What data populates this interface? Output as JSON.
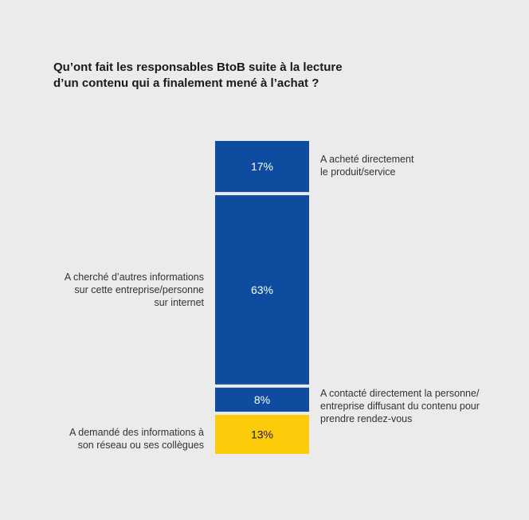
{
  "colors": {
    "blue": "#0d4c9f",
    "yellow": "#fccc0a",
    "background": "#ebebeb"
  },
  "chart_data": {
    "type": "bar",
    "stacked": true,
    "title": [
      "Qu’ont fait les responsables BtoB suite à la lecture",
      "d’un contenu qui a finalement mené à l’achat ?"
    ],
    "unit": "%",
    "segments": [
      {
        "value": 17,
        "label_text": "17%",
        "color": "#0d4c9f",
        "text_color": "#ffffff",
        "annotation": [
          "A acheté directement",
          "le produit/service"
        ]
      },
      {
        "value": 63,
        "label_text": "63%",
        "color": "#0d4c9f",
        "text_color": "#ffffff",
        "annotation": [
          "A cherché d’autres informations",
          "sur cette entreprise/personne",
          "sur internet"
        ]
      },
      {
        "value": 8,
        "label_text": "8%",
        "color": "#0d4c9f",
        "text_color": "#ffffff",
        "annotation": [
          "A contacté directement la personne/",
          "entreprise diffusant du contenu pour",
          "prendre rendez-vous"
        ]
      },
      {
        "value": 13,
        "label_text": "13%",
        "color": "#fccc0a",
        "text_color": "#1a1a1a",
        "annotation": [
          "A demandé des informations à",
          "son réseau ou ses collègues"
        ]
      }
    ]
  }
}
